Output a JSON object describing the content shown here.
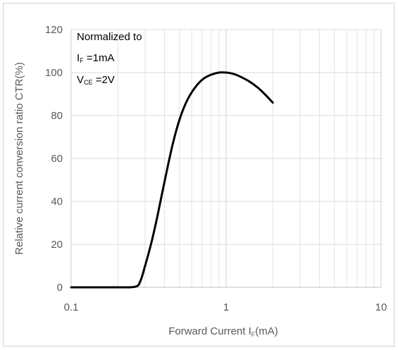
{
  "chart_data": {
    "type": "line",
    "x_scale": "log",
    "xlim": [
      0.1,
      10
    ],
    "ylim": [
      0,
      120
    ],
    "x_ticks": [
      "0.1",
      "1",
      "10"
    ],
    "y_ticks": [
      "0",
      "20",
      "40",
      "60",
      "80",
      "100",
      "120"
    ],
    "xlabel": {
      "main": "Forward Current I",
      "sub": "F",
      "unit": "(mA)"
    },
    "ylabel": "Relative current conversion ratio CTR(%)",
    "grid": true,
    "annotation": {
      "line1": "Normalized to",
      "line2_main": "I",
      "line2_sub": "F",
      "line2_rest": " =1mA",
      "line3_main": "V",
      "line3_sub": "CE",
      "line3_rest": " =2V"
    },
    "series": [
      {
        "color": "#000000",
        "x": [
          0.1,
          0.2,
          0.26,
          0.28,
          0.3,
          0.33,
          0.36,
          0.4,
          0.45,
          0.5,
          0.56,
          0.63,
          0.71,
          0.8,
          0.9,
          1.0,
          1.1,
          1.2,
          1.4,
          1.6,
          1.8,
          2.0
        ],
        "y": [
          0,
          0,
          0.3,
          3,
          10,
          21,
          33,
          49,
          66,
          78,
          87,
          93,
          97,
          99,
          100,
          100,
          99.5,
          98.5,
          96,
          93,
          89.5,
          86
        ]
      }
    ]
  }
}
